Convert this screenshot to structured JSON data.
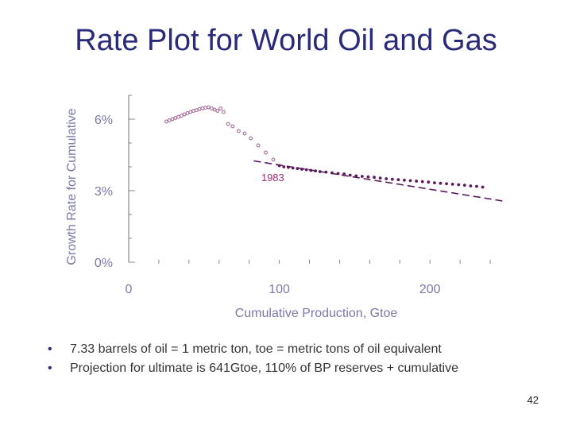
{
  "slide": {
    "title": "Rate Plot for World Oil and Gas",
    "bullets": [
      "7.33 barrels of oil = 1 metric ton, toe = metric tons of oil equivalent",
      "Projection for ultimate is 641Gtoe, 110% of BP reserves + cumulative"
    ],
    "page_number": "42"
  },
  "colors": {
    "title": "#2a2a7a",
    "axis_text": "#7a7aa8",
    "open_markers": "#a06090",
    "filled_markers": "#5a1a5a",
    "projection": "#5a1a5a",
    "annotation": "#a03070"
  },
  "chart_data": {
    "type": "scatter",
    "title": "",
    "xlabel": "Cumulative Production, Gtoe",
    "ylabel": "Growth Rate for Cumulative",
    "xlim": [
      0,
      250
    ],
    "ylim": [
      0,
      7
    ],
    "x_ticks": [
      0,
      100,
      200
    ],
    "x_tick_labels": [
      "0",
      "100",
      "200"
    ],
    "y_ticks": [
      0,
      3,
      6
    ],
    "y_tick_labels": [
      "0%",
      "3%",
      "6%"
    ],
    "annotations": [
      {
        "text": "1983",
        "x": 88,
        "y": 3.4
      }
    ],
    "series": [
      {
        "marker": "open",
        "x": [
          25,
          27,
          29,
          31,
          33,
          35,
          37,
          39,
          41,
          43,
          45,
          47,
          49,
          51,
          53,
          55,
          57,
          59,
          61,
          63,
          66,
          69,
          73,
          77,
          81,
          86,
          91,
          96
        ],
        "y": [
          5.9,
          5.95,
          6.0,
          6.05,
          6.1,
          6.15,
          6.2,
          6.25,
          6.3,
          6.35,
          6.38,
          6.42,
          6.45,
          6.48,
          6.5,
          6.45,
          6.4,
          6.35,
          6.45,
          6.3,
          5.8,
          5.7,
          5.5,
          5.4,
          5.2,
          4.9,
          4.6,
          4.3
        ]
      },
      {
        "marker": "filled",
        "x": [
          100,
          103,
          106,
          109,
          112,
          115,
          118,
          121,
          124,
          127,
          131,
          135,
          139,
          143,
          147,
          151,
          155,
          159,
          163,
          167,
          171,
          175,
          179,
          183,
          187,
          191,
          195,
          199,
          203,
          207,
          211,
          215,
          219,
          223,
          227,
          231,
          235
        ],
        "y": [
          4.05,
          4.0,
          3.98,
          3.95,
          3.93,
          3.9,
          3.88,
          3.85,
          3.83,
          3.8,
          3.78,
          3.75,
          3.72,
          3.7,
          3.65,
          3.62,
          3.6,
          3.58,
          3.56,
          3.53,
          3.5,
          3.48,
          3.46,
          3.44,
          3.42,
          3.4,
          3.38,
          3.36,
          3.33,
          3.31,
          3.29,
          3.27,
          3.25,
          3.23,
          3.2,
          3.18,
          3.15
        ]
      },
      {
        "marker": "dashed-line",
        "x": [
          83,
          250
        ],
        "y": [
          4.25,
          2.55
        ]
      }
    ]
  }
}
